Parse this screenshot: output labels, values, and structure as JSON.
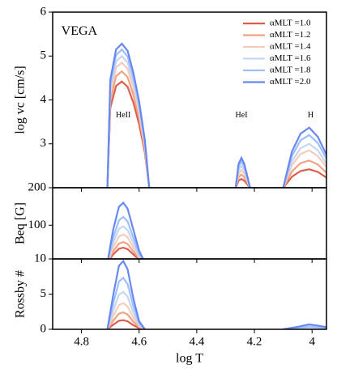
{
  "chart_data": [
    {
      "type": "line",
      "ylabel": "log vc [cm/s]",
      "xlim": [
        4.9,
        3.95
      ],
      "ylim": [
        2,
        6
      ],
      "yticks": [
        3,
        4,
        5,
        6
      ],
      "legend": "upper right",
      "annotations": [
        {
          "text": "VEGA",
          "x": 4.87,
          "y": 5.55
        },
        {
          "text": "HeII",
          "x": 4.655,
          "y": 3.65
        },
        {
          "text": "HeI",
          "x": 4.245,
          "y": 3.65
        },
        {
          "text": "H",
          "x": 4.005,
          "y": 3.65
        }
      ],
      "x": [
        4.71,
        4.7,
        4.68,
        4.66,
        4.64,
        4.62,
        4.6,
        4.58,
        4.565,
        4.4,
        4.265,
        4.255,
        4.245,
        4.235,
        4.215,
        4.15,
        4.1,
        4.07,
        4.04,
        4.01,
        3.98,
        3.95
      ],
      "series": [
        {
          "name": "αMLT =1.0",
          "color": "#dc5d4a",
          "values": [
            2,
            3.82,
            4.32,
            4.42,
            4.3,
            3.94,
            3.45,
            2.8,
            2,
            null,
            2,
            2.16,
            2.2,
            2.16,
            2,
            null,
            2,
            2.25,
            2.38,
            2.42,
            2.36,
            2.23
          ]
        },
        {
          "name": "αMLT =1.2",
          "color": "#f2a283",
          "values": [
            2,
            3.99,
            4.54,
            4.65,
            4.52,
            4.12,
            3.59,
            2.87,
            2,
            null,
            2,
            2.24,
            2.3,
            2.24,
            2,
            null,
            2,
            2.37,
            2.56,
            2.62,
            2.53,
            2.34
          ]
        },
        {
          "name": "αMLT =1.4",
          "color": "#f2cdbb",
          "values": [
            2,
            4.14,
            4.74,
            4.85,
            4.71,
            4.28,
            3.71,
            2.94,
            2,
            null,
            2,
            2.32,
            2.4,
            2.32,
            2,
            null,
            2,
            2.51,
            2.77,
            2.85,
            2.72,
            2.47
          ]
        },
        {
          "name": "αMLT =1.6",
          "color": "#c5d6f2",
          "values": [
            2,
            4.25,
            4.88,
            5.0,
            4.85,
            4.4,
            3.8,
            2.99,
            2,
            null,
            2,
            2.4,
            2.5,
            2.4,
            2,
            null,
            2,
            2.6,
            2.9,
            3.0,
            2.85,
            2.55
          ]
        },
        {
          "name": "αMLT =1.8",
          "color": "#9ebeff",
          "values": [
            2,
            4.36,
            5.02,
            5.15,
            4.99,
            4.52,
            3.89,
            3.04,
            2,
            null,
            2,
            2.48,
            2.6,
            2.48,
            2,
            null,
            2,
            2.72,
            3.08,
            3.2,
            3.02,
            2.66
          ]
        },
        {
          "name": "αMLT =2.0",
          "color": "#6788ee",
          "values": [
            2,
            4.46,
            5.15,
            5.28,
            5.12,
            4.62,
            3.97,
            3.08,
            2,
            null,
            2,
            2.54,
            2.68,
            2.54,
            2,
            null,
            2,
            2.82,
            3.23,
            3.37,
            3.16,
            2.75
          ]
        }
      ]
    },
    {
      "type": "line",
      "ylabel": "Beq [G]",
      "xlim": [
        4.9,
        3.95
      ],
      "ylim": [
        10,
        200
      ],
      "yticks": [
        100,
        200
      ],
      "x": [
        4.71,
        4.69,
        4.67,
        4.655,
        4.64,
        4.62,
        4.6,
        4.58
      ],
      "series": [
        {
          "name": "αMLT =1.0",
          "color": "#dc5d4a",
          "values": [
            0,
            22,
            37,
            40,
            36,
            22,
            8,
            0
          ]
        },
        {
          "name": "αMLT =1.2",
          "color": "#f2a283",
          "values": [
            0,
            30,
            51,
            55,
            50,
            30,
            11,
            0
          ]
        },
        {
          "name": "αMLT =1.4",
          "color": "#f2cdbb",
          "values": [
            0,
            41,
            70,
            75,
            68,
            41,
            15,
            0
          ]
        },
        {
          "name": "αMLT =1.6",
          "color": "#c5d6f2",
          "values": [
            0,
            53,
            90,
            97,
            87,
            53,
            19,
            0
          ]
        },
        {
          "name": "αMLT =1.8",
          "color": "#9ebeff",
          "values": [
            0,
            67,
            113,
            122,
            110,
            67,
            24,
            0
          ]
        },
        {
          "name": "αMLT =2.0",
          "color": "#6788ee",
          "values": [
            0,
            88,
            149,
            160,
            144,
            88,
            32,
            0
          ]
        }
      ]
    },
    {
      "type": "line",
      "ylabel": "Rossby #",
      "xlabel": "log T",
      "xlim": [
        4.9,
        3.95
      ],
      "ylim": [
        0,
        10
      ],
      "yticks": [
        0,
        5,
        10
      ],
      "xticks": [
        4.8,
        4.6,
        4.4,
        4.2,
        4.0
      ],
      "x": [
        4.71,
        4.69,
        4.67,
        4.655,
        4.64,
        4.62,
        4.6,
        4.58,
        4.3,
        4.1,
        4.05,
        4.01,
        3.97,
        3.95
      ],
      "series": [
        {
          "name": "αMLT =1.0",
          "color": "#dc5d4a",
          "values": [
            0,
            0.65,
            1.21,
            1.3,
            1.14,
            0.59,
            0.16,
            0,
            null,
            0,
            0.02,
            0.04,
            0.03,
            0.02
          ]
        },
        {
          "name": "αMLT =1.2",
          "color": "#f2a283",
          "values": [
            0,
            1.2,
            2.23,
            2.4,
            2.11,
            1.08,
            0.29,
            0,
            null,
            0,
            0.04,
            0.08,
            0.05,
            0.03
          ]
        },
        {
          "name": "αMLT =1.4",
          "color": "#f2cdbb",
          "values": [
            0,
            1.85,
            3.44,
            3.7,
            3.26,
            1.67,
            0.44,
            0,
            null,
            0,
            0.07,
            0.15,
            0.1,
            0.06
          ]
        },
        {
          "name": "αMLT =1.6",
          "color": "#c5d6f2",
          "values": [
            0,
            2.65,
            4.93,
            5.3,
            4.66,
            2.39,
            0.64,
            0,
            null,
            0,
            0.12,
            0.25,
            0.15,
            0.1
          ]
        },
        {
          "name": "αMLT =1.8",
          "color": "#9ebeff",
          "values": [
            0,
            3.65,
            6.79,
            7.3,
            6.42,
            3.29,
            0.88,
            0,
            null,
            0,
            0.2,
            0.4,
            0.25,
            0.15
          ]
        },
        {
          "name": "αMLT =2.0",
          "color": "#6788ee",
          "values": [
            0,
            4.85,
            9.02,
            9.7,
            8.54,
            4.37,
            1.16,
            0,
            null,
            0,
            0.35,
            0.7,
            0.45,
            0.3
          ]
        }
      ]
    }
  ]
}
